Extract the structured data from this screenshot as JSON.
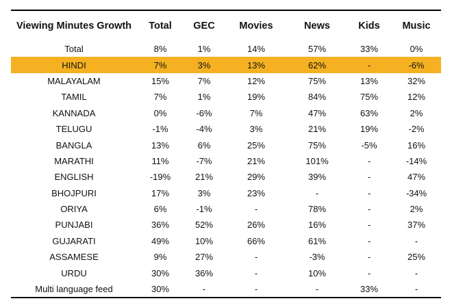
{
  "table": {
    "headers": [
      "Viewing Minutes Growth",
      "Total",
      "GEC",
      "Movies",
      "News",
      "Kids",
      "Music"
    ],
    "highlight_color": "#f5b122",
    "rows": [
      {
        "name": "Total",
        "values": [
          "8%",
          "1%",
          "14%",
          "57%",
          "33%",
          "0%"
        ]
      },
      {
        "name": "HINDI",
        "values": [
          "7%",
          "3%",
          "13%",
          "62%",
          "-",
          "-6%"
        ]
      },
      {
        "name": "MALAYALAM",
        "values": [
          "15%",
          "7%",
          "12%",
          "75%",
          "13%",
          "32%"
        ]
      },
      {
        "name": "TAMIL",
        "values": [
          "7%",
          "1%",
          "19%",
          "84%",
          "75%",
          "12%"
        ]
      },
      {
        "name": "KANNADA",
        "values": [
          "0%",
          "-6%",
          "7%",
          "47%",
          "63%",
          "2%"
        ]
      },
      {
        "name": "TELUGU",
        "values": [
          "-1%",
          "-4%",
          "3%",
          "21%",
          "19%",
          "-2%"
        ]
      },
      {
        "name": "BANGLA",
        "values": [
          "13%",
          "6%",
          "25%",
          "75%",
          "-5%",
          "16%"
        ]
      },
      {
        "name": "MARATHI",
        "values": [
          "11%",
          "-7%",
          "21%",
          "101%",
          "-",
          "-14%"
        ]
      },
      {
        "name": "ENGLISH",
        "values": [
          "-19%",
          "21%",
          "29%",
          "39%",
          "-",
          "47%"
        ]
      },
      {
        "name": "BHOJPURI",
        "values": [
          "17%",
          "3%",
          "23%",
          "-",
          "-",
          "-34%"
        ]
      },
      {
        "name": "ORIYA",
        "values": [
          "6%",
          "-1%",
          "-",
          "78%",
          "-",
          "2%"
        ]
      },
      {
        "name": "PUNJABI",
        "values": [
          "36%",
          "52%",
          "26%",
          "16%",
          "-",
          "37%"
        ]
      },
      {
        "name": "GUJARATI",
        "values": [
          "49%",
          "10%",
          "66%",
          "61%",
          "-",
          "-"
        ]
      },
      {
        "name": "ASSAMESE",
        "values": [
          "9%",
          "27%",
          "-",
          "-3%",
          "-",
          "25%"
        ]
      },
      {
        "name": "URDU",
        "values": [
          "30%",
          "36%",
          "-",
          "10%",
          "-",
          "-"
        ]
      },
      {
        "name": "Multi language feed",
        "values": [
          "30%",
          "-",
          "-",
          "-",
          "33%",
          "-"
        ]
      }
    ]
  }
}
